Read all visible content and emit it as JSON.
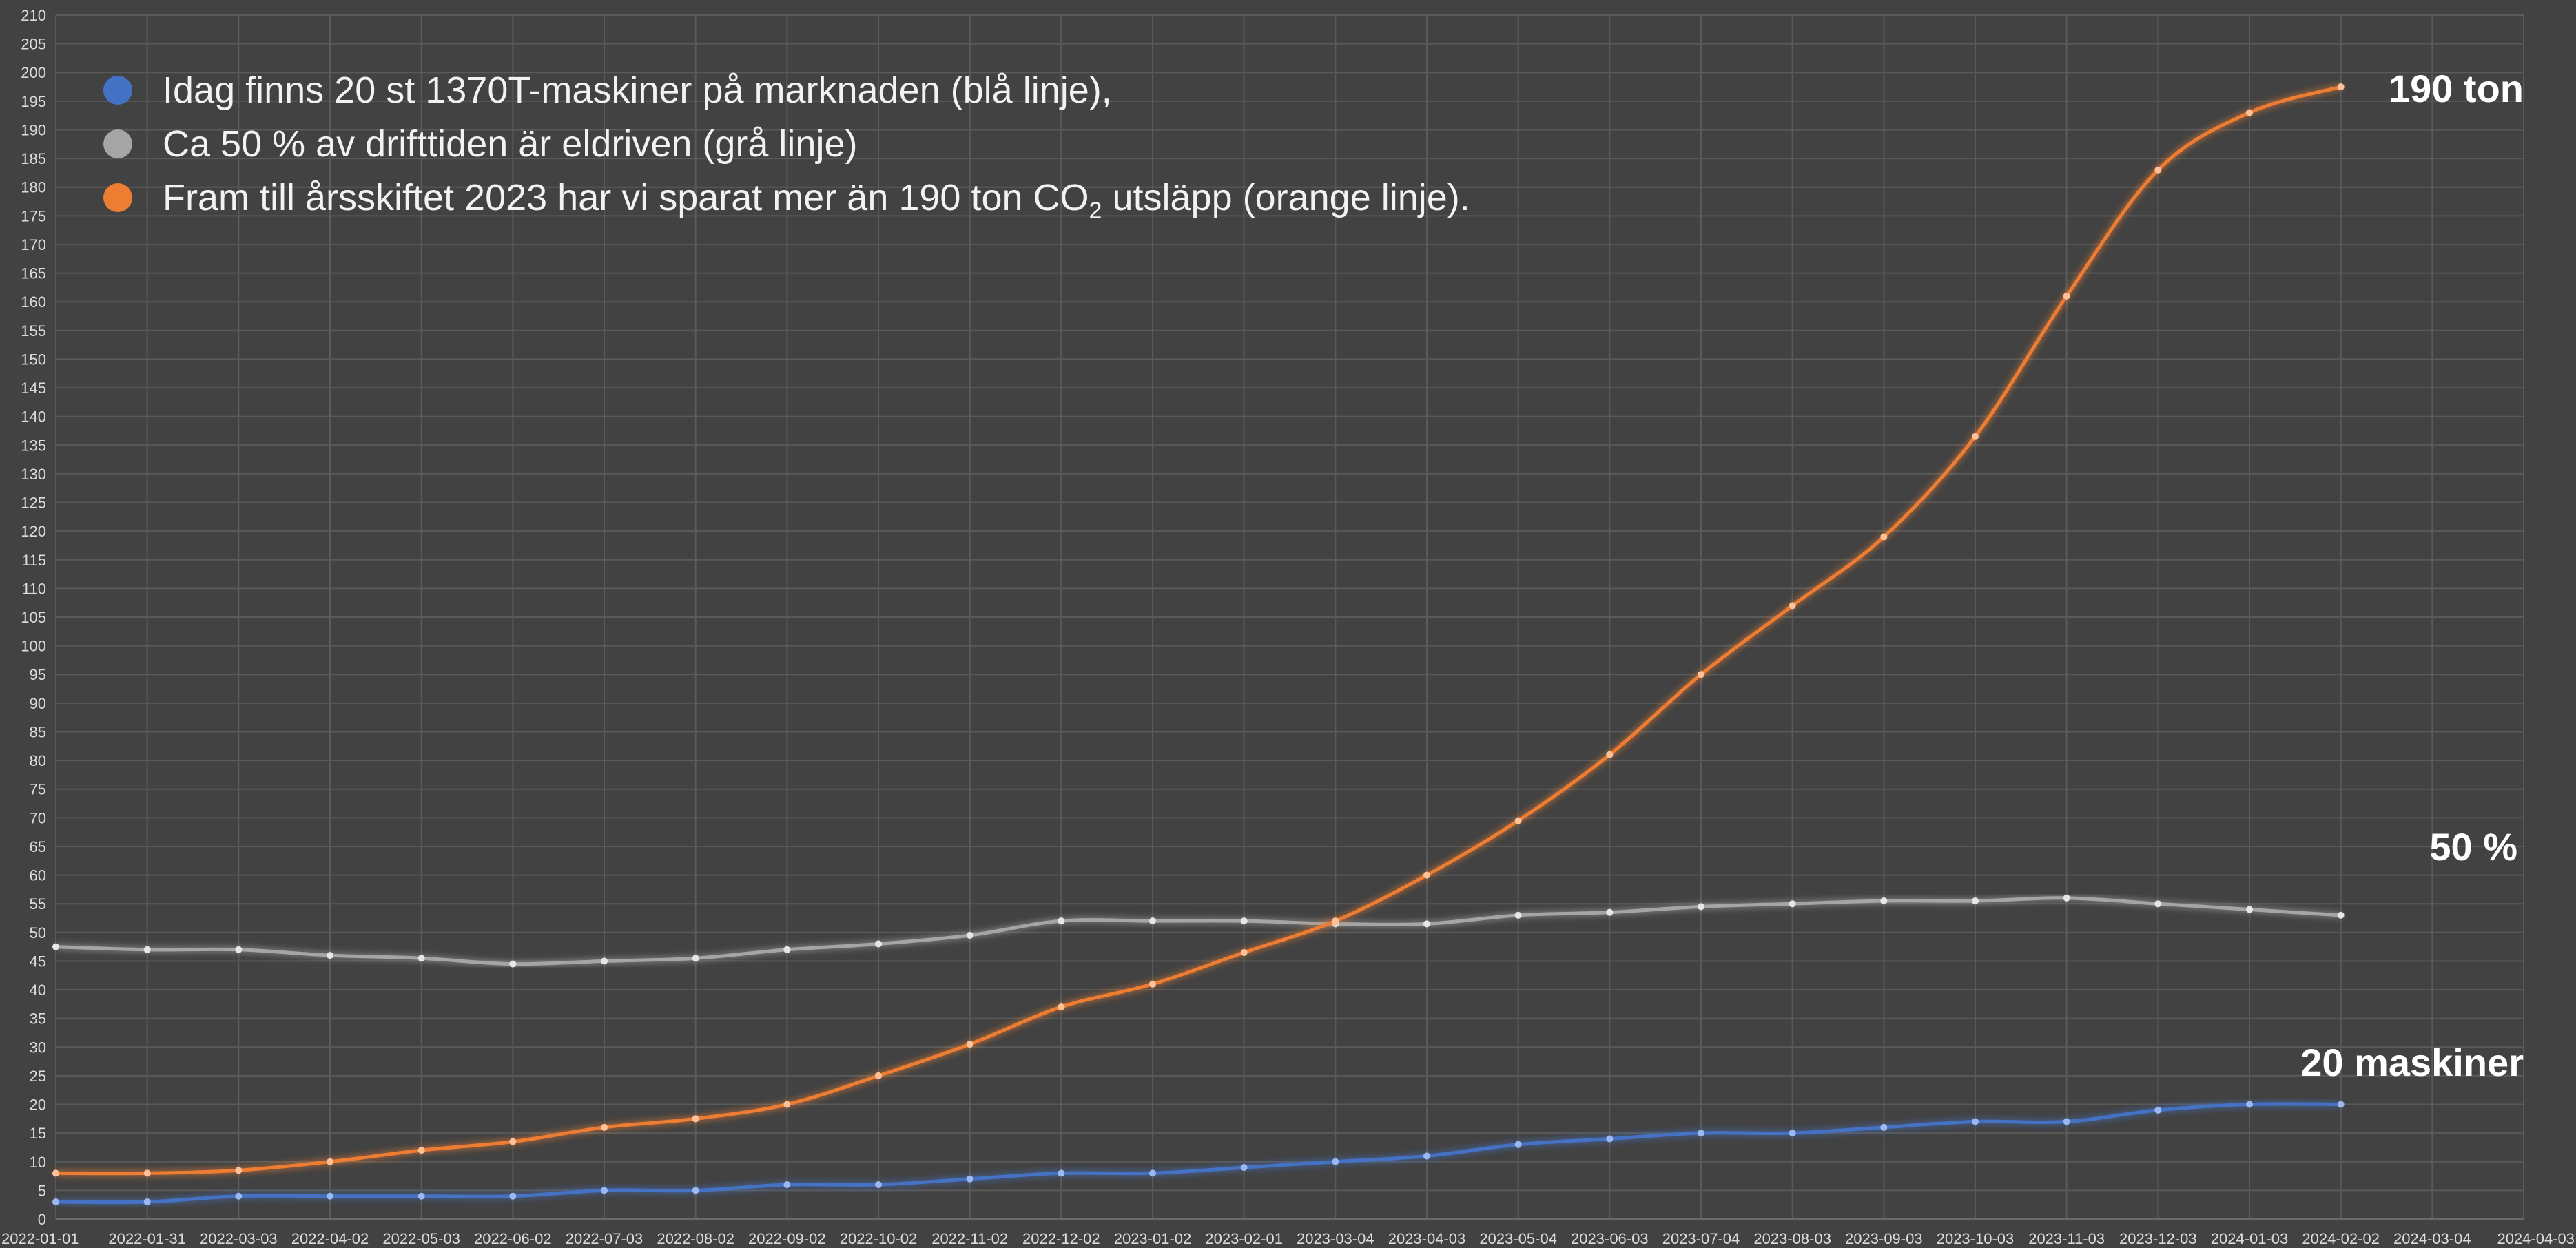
{
  "colors": {
    "background": "#424242",
    "grid": "#5a5a5a",
    "tick_text": "#dcdcdc",
    "text": "#f2f2f2"
  },
  "legend": {
    "items": [
      {
        "label": "Idag finns 20 st 1370T-maskiner på marknaden (blå linje),",
        "color": "#4472c4"
      },
      {
        "label": "Ca 50 % av drifttiden är eldriven (grå linje)",
        "color": "#a5a5a5"
      },
      {
        "label_pre": "Fram till årsskiftet 2023 har vi sparat mer än 190 ton CO",
        "label_sub": "2",
        "label_post": " utsläpp (orange linje).",
        "color": "#ed7d31"
      }
    ]
  },
  "annotations": {
    "orange": "190 ton",
    "gray": "50 %",
    "blue": "20 maskiner"
  },
  "chart_data": {
    "type": "line",
    "x": [
      "2022-01-01",
      "2022-01-31",
      "2022-03-03",
      "2022-04-02",
      "2022-05-03",
      "2022-06-02",
      "2022-07-03",
      "2022-08-02",
      "2022-09-02",
      "2022-10-02",
      "2022-11-02",
      "2022-12-02",
      "2023-01-02",
      "2023-02-01",
      "2023-03-04",
      "2023-04-03",
      "2023-05-04",
      "2023-06-03",
      "2023-07-04",
      "2023-08-03",
      "2023-09-03",
      "2023-10-03",
      "2023-11-03",
      "2023-12-03",
      "2024-01-03",
      "2024-02-02",
      "2024-03-04",
      "2024-04-03"
    ],
    "series": [
      {
        "color": "#4472c4",
        "values": [
          3,
          3,
          4,
          4,
          4,
          4,
          5,
          5,
          6,
          6,
          7,
          8,
          8,
          9,
          10,
          11,
          13,
          14,
          15,
          15,
          16,
          17,
          17,
          19,
          20,
          20,
          null,
          null
        ]
      },
      {
        "color": "#a5a5a5",
        "values": [
          47.5,
          47,
          47,
          46,
          45.5,
          44.5,
          45,
          45.5,
          47,
          48,
          49.5,
          52,
          52,
          52,
          51.5,
          51.5,
          53,
          53.5,
          54.5,
          55,
          55.5,
          55.5,
          56,
          55,
          54,
          53,
          null,
          null
        ]
      },
      {
        "color": "#ed7d31",
        "values": [
          8,
          8,
          8.5,
          10,
          12,
          13.5,
          16,
          17.5,
          20,
          25,
          30.5,
          37,
          41,
          46.5,
          52,
          60,
          69.5,
          81,
          95,
          107,
          119,
          136.5,
          161,
          183,
          193,
          197.5,
          null,
          null
        ]
      }
    ],
    "ylim": [
      0,
      210
    ],
    "ytick_step": 5,
    "grid": true,
    "legend_position": "top-left"
  }
}
